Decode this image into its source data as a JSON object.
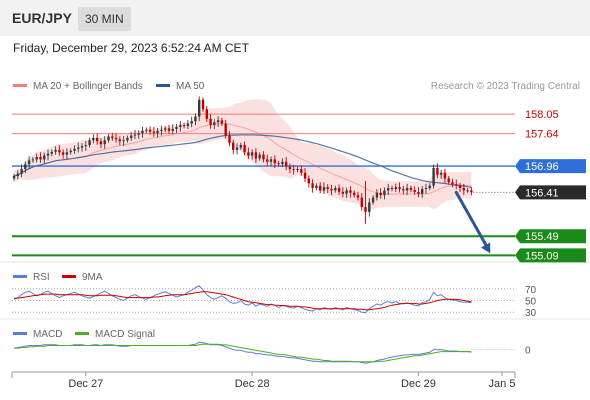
{
  "header": {
    "symbol": "EUR/JPY",
    "timeframe": "30 MIN",
    "datetime": "Friday, December 29, 2023 6:52:24 AM CET"
  },
  "legend": {
    "ma20_bb": "MA 20 + Bollinger Bands",
    "ma50": "MA 50",
    "credit": "Research © 2023 Trading Central",
    "rsi": "RSI",
    "rsi_ma": "9MA",
    "macd": "MACD",
    "macd_signal": "MACD Signal"
  },
  "colors": {
    "bollinger": "#f07c7c",
    "ma50": "#2b5797",
    "up_candle": "#3a3a3a",
    "down_candle": "#c00000",
    "resistance": "#f07c7c",
    "pivot": "#2f6fd8",
    "support": "#1a8a1a",
    "current": "#2a2a2a",
    "rsi": "#5b7fd6",
    "rsi_ma": "#cc0000",
    "macd": "#5b7fd6",
    "macd_signal": "#4caf1f"
  },
  "chart_data": [
    {
      "type": "candlestick",
      "panel": "price",
      "ylim": [
        154.95,
        158.45
      ],
      "xlim": [
        0,
        126
      ],
      "x_ticks": [
        {
          "label": "Dec 27",
          "index": 19
        },
        {
          "label": "Dec 28",
          "index": 63
        },
        {
          "label": "Dec 29",
          "index": 107
        },
        {
          "label": "Jan 5",
          "index": 124
        }
      ],
      "levels": [
        {
          "label": "158.05",
          "value": 158.05,
          "role": "resistance"
        },
        {
          "label": "157.64",
          "value": 157.64,
          "role": "resistance"
        },
        {
          "label": "156.96",
          "value": 156.96,
          "role": "pivot"
        },
        {
          "label": "156.41",
          "value": 156.41,
          "role": "current"
        },
        {
          "label": "155.49",
          "value": 155.49,
          "role": "support"
        },
        {
          "label": "155.09",
          "value": 155.09,
          "role": "support"
        }
      ],
      "forecast_arrow": {
        "from": {
          "index": 117,
          "value": 156.41
        },
        "to": {
          "index": 126,
          "value": 155.13
        }
      },
      "close": [
        156.75,
        156.8,
        156.9,
        157.0,
        157.08,
        157.1,
        157.15,
        157.1,
        157.18,
        157.22,
        157.26,
        157.3,
        157.25,
        157.2,
        157.25,
        157.28,
        157.32,
        157.35,
        157.38,
        157.4,
        157.5,
        157.55,
        157.48,
        157.42,
        157.5,
        157.58,
        157.55,
        157.52,
        157.48,
        157.5,
        157.55,
        157.6,
        157.62,
        157.65,
        157.7,
        157.72,
        157.68,
        157.65,
        157.7,
        157.72,
        157.75,
        157.7,
        157.74,
        157.78,
        157.82,
        157.8,
        157.85,
        157.9,
        158.0,
        158.35,
        158.15,
        157.95,
        157.82,
        157.88,
        157.92,
        157.85,
        157.6,
        157.45,
        157.3,
        157.35,
        157.4,
        157.25,
        157.18,
        157.25,
        157.12,
        157.2,
        157.1,
        157.05,
        157.1,
        157.02,
        157.0,
        157.05,
        156.95,
        156.9,
        156.88,
        156.9,
        156.82,
        156.7,
        156.6,
        156.5,
        156.55,
        156.45,
        156.52,
        156.48,
        156.45,
        156.5,
        156.42,
        156.38,
        156.45,
        156.4,
        156.35,
        156.3,
        156.1,
        156.0,
        156.2,
        156.3,
        156.4,
        156.35,
        156.45,
        156.5,
        156.48,
        156.52,
        156.48,
        156.45,
        156.5,
        156.46,
        156.42,
        156.38,
        156.48,
        156.5,
        156.55,
        156.92,
        156.78,
        156.82,
        156.7,
        156.62,
        156.58,
        156.55,
        156.5,
        156.45,
        156.45,
        156.41
      ]
    },
    {
      "type": "line",
      "panel": "rsi",
      "ylim": [
        20,
        80
      ],
      "reference_levels": [
        {
          "label": "70",
          "value": 70
        },
        {
          "label": "50",
          "value": 50
        },
        {
          "label": "30",
          "value": 30
        }
      ],
      "series": [
        {
          "name": "RSI",
          "values": [
            52,
            55,
            60,
            64,
            66,
            62,
            58,
            60,
            64,
            66,
            62,
            58,
            55,
            58,
            60,
            62,
            64,
            61,
            58,
            56,
            54,
            57,
            60,
            63,
            66,
            62,
            58,
            55,
            52,
            50,
            54,
            58,
            60,
            57,
            54,
            52,
            55,
            58,
            61,
            63,
            65,
            62,
            59,
            56,
            58,
            60,
            64,
            68,
            72,
            75,
            68,
            60,
            55,
            52,
            55,
            58,
            54,
            48,
            45,
            46,
            50,
            44,
            42,
            46,
            40,
            44,
            42,
            40,
            44,
            42,
            38,
            42,
            40,
            38,
            37,
            40,
            38,
            35,
            33,
            32,
            36,
            34,
            38,
            36,
            35,
            38,
            36,
            34,
            38,
            36,
            34,
            33,
            30,
            29,
            36,
            40,
            44,
            42,
            46,
            48,
            46,
            48,
            45,
            44,
            46,
            44,
            42,
            41,
            46,
            48,
            52,
            64,
            58,
            60,
            55,
            52,
            51,
            50,
            48,
            47,
            47,
            46
          ]
        },
        {
          "name": "9MA",
          "values": [
            54,
            54,
            55,
            56,
            57,
            58,
            59,
            60,
            61,
            61,
            61,
            61,
            60,
            60,
            60,
            60,
            60,
            60,
            60,
            59,
            58,
            58,
            58,
            59,
            59,
            59,
            59,
            58,
            57,
            56,
            55,
            55,
            55,
            55,
            55,
            55,
            55,
            56,
            56,
            57,
            58,
            59,
            60,
            60,
            60,
            60,
            61,
            62,
            63,
            64,
            65,
            65,
            64,
            63,
            62,
            61,
            60,
            58,
            56,
            54,
            52,
            50,
            48,
            47,
            46,
            45,
            44,
            43,
            43,
            42,
            42,
            41,
            41,
            40,
            40,
            40,
            39,
            39,
            38,
            37,
            36,
            36,
            36,
            36,
            36,
            36,
            36,
            36,
            36,
            36,
            36,
            35,
            35,
            34,
            34,
            35,
            36,
            37,
            38,
            40,
            42,
            43,
            44,
            45,
            45,
            45,
            45,
            44,
            44,
            45,
            46,
            48,
            50,
            51,
            52,
            52,
            52,
            52,
            51,
            50,
            49,
            48
          ]
        }
      ]
    },
    {
      "type": "line",
      "panel": "macd",
      "ylim": [
        -0.3,
        0.2
      ],
      "reference_levels": [
        {
          "label": "0",
          "value": 0
        }
      ],
      "series": [
        {
          "name": "MACD",
          "values": [
            0.02,
            0.03,
            0.04,
            0.05,
            0.06,
            0.06,
            0.06,
            0.06,
            0.07,
            0.07,
            0.07,
            0.07,
            0.06,
            0.06,
            0.06,
            0.06,
            0.07,
            0.07,
            0.07,
            0.06,
            0.06,
            0.07,
            0.07,
            0.06,
            0.07,
            0.07,
            0.07,
            0.06,
            0.05,
            0.05,
            0.05,
            0.06,
            0.06,
            0.06,
            0.06,
            0.06,
            0.06,
            0.06,
            0.06,
            0.06,
            0.06,
            0.06,
            0.06,
            0.06,
            0.06,
            0.06,
            0.06,
            0.07,
            0.08,
            0.11,
            0.1,
            0.09,
            0.07,
            0.07,
            0.07,
            0.06,
            0.04,
            0.02,
            0.0,
            -0.01,
            -0.01,
            -0.03,
            -0.04,
            -0.04,
            -0.06,
            -0.06,
            -0.07,
            -0.08,
            -0.08,
            -0.09,
            -0.1,
            -0.1,
            -0.11,
            -0.12,
            -0.12,
            -0.13,
            -0.14,
            -0.15,
            -0.16,
            -0.17,
            -0.17,
            -0.18,
            -0.18,
            -0.18,
            -0.18,
            -0.18,
            -0.18,
            -0.18,
            -0.18,
            -0.18,
            -0.18,
            -0.18,
            -0.19,
            -0.2,
            -0.19,
            -0.18,
            -0.16,
            -0.15,
            -0.14,
            -0.12,
            -0.11,
            -0.1,
            -0.09,
            -0.08,
            -0.08,
            -0.07,
            -0.07,
            -0.07,
            -0.06,
            -0.05,
            -0.04,
            0.0,
            0.0,
            0.0,
            -0.01,
            -0.02,
            -0.02,
            -0.02,
            -0.03,
            -0.03,
            -0.03,
            -0.04
          ]
        },
        {
          "name": "MACD Signal",
          "values": [
            0.02,
            0.02,
            0.03,
            0.03,
            0.04,
            0.04,
            0.05,
            0.05,
            0.05,
            0.06,
            0.06,
            0.06,
            0.06,
            0.06,
            0.06,
            0.06,
            0.06,
            0.06,
            0.06,
            0.06,
            0.06,
            0.06,
            0.06,
            0.06,
            0.06,
            0.06,
            0.06,
            0.06,
            0.06,
            0.06,
            0.06,
            0.06,
            0.06,
            0.06,
            0.06,
            0.06,
            0.06,
            0.06,
            0.06,
            0.06,
            0.06,
            0.06,
            0.06,
            0.06,
            0.06,
            0.06,
            0.06,
            0.06,
            0.06,
            0.07,
            0.08,
            0.08,
            0.08,
            0.08,
            0.08,
            0.07,
            0.07,
            0.06,
            0.05,
            0.04,
            0.03,
            0.02,
            0.01,
            0.0,
            -0.01,
            -0.02,
            -0.03,
            -0.04,
            -0.05,
            -0.06,
            -0.07,
            -0.07,
            -0.08,
            -0.09,
            -0.1,
            -0.11,
            -0.11,
            -0.12,
            -0.13,
            -0.14,
            -0.14,
            -0.15,
            -0.16,
            -0.16,
            -0.17,
            -0.17,
            -0.17,
            -0.17,
            -0.17,
            -0.17,
            -0.18,
            -0.18,
            -0.18,
            -0.18,
            -0.18,
            -0.18,
            -0.18,
            -0.17,
            -0.17,
            -0.16,
            -0.15,
            -0.14,
            -0.13,
            -0.12,
            -0.11,
            -0.1,
            -0.09,
            -0.09,
            -0.08,
            -0.07,
            -0.06,
            -0.05,
            -0.04,
            -0.03,
            -0.03,
            -0.03,
            -0.03,
            -0.03,
            -0.03,
            -0.03,
            -0.03,
            -0.03
          ]
        }
      ]
    }
  ]
}
